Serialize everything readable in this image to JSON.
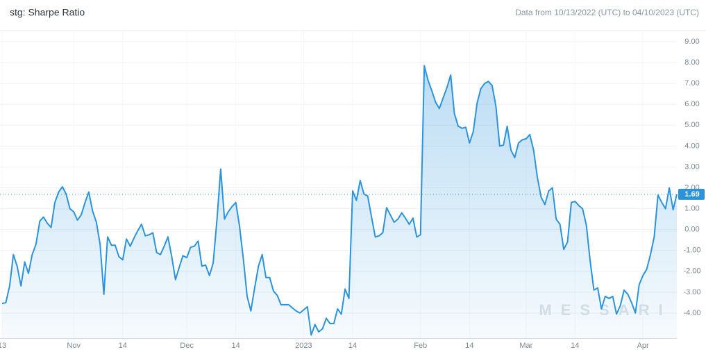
{
  "chart_data": {
    "type": "line",
    "title": "stg: Sharpe Ratio",
    "subtitle": "Data from 10/13/2022 (UTC) to 04/10/2023 (UTC)",
    "watermark": "MESSARI",
    "grid": true,
    "xlim": [
      "2022-10-13",
      "2023-04-10"
    ],
    "ylim": [
      -5.2,
      9.5
    ],
    "xticks": [
      {
        "value": "2022-10-13",
        "label": "13"
      },
      {
        "value": "2022-11-01",
        "label": "Nov"
      },
      {
        "value": "2022-11-14",
        "label": "14"
      },
      {
        "value": "2022-12-01",
        "label": "Dec"
      },
      {
        "value": "2022-12-14",
        "label": "14"
      },
      {
        "value": "2023-01-01",
        "label": "2023"
      },
      {
        "value": "2023-01-14",
        "label": "14"
      },
      {
        "value": "2023-02-01",
        "label": "Feb"
      },
      {
        "value": "2023-02-14",
        "label": "14"
      },
      {
        "value": "2023-03-01",
        "label": "Mar"
      },
      {
        "value": "2023-03-14",
        "label": "14"
      },
      {
        "value": "2023-04-01",
        "label": "Apr"
      }
    ],
    "yticks": [
      {
        "value": 9,
        "label": "9.00"
      },
      {
        "value": 8,
        "label": "8.00"
      },
      {
        "value": 7,
        "label": "7.00"
      },
      {
        "value": 6,
        "label": "6.00"
      },
      {
        "value": 5,
        "label": "5.00"
      },
      {
        "value": 4,
        "label": "4.00"
      },
      {
        "value": 3,
        "label": "3.00"
      },
      {
        "value": 2,
        "label": "2.00"
      },
      {
        "value": 1,
        "label": "1.00"
      },
      {
        "value": 0,
        "label": "0.00"
      },
      {
        "value": -1,
        "label": "-1.00"
      },
      {
        "value": -2,
        "label": "-2.00"
      },
      {
        "value": -3,
        "label": "-3.00"
      },
      {
        "value": -4,
        "label": "-4.00"
      }
    ],
    "x": [
      "2022-10-13",
      "2022-10-14",
      "2022-10-15",
      "2022-10-16",
      "2022-10-17",
      "2022-10-18",
      "2022-10-19",
      "2022-10-20",
      "2022-10-21",
      "2022-10-22",
      "2022-10-23",
      "2022-10-24",
      "2022-10-25",
      "2022-10-26",
      "2022-10-27",
      "2022-10-28",
      "2022-10-29",
      "2022-10-30",
      "2022-10-31",
      "2022-11-01",
      "2022-11-02",
      "2022-11-03",
      "2022-11-04",
      "2022-11-05",
      "2022-11-06",
      "2022-11-07",
      "2022-11-08",
      "2022-11-09",
      "2022-11-10",
      "2022-11-11",
      "2022-11-12",
      "2022-11-13",
      "2022-11-14",
      "2022-11-15",
      "2022-11-16",
      "2022-11-17",
      "2022-11-18",
      "2022-11-19",
      "2022-11-20",
      "2022-11-21",
      "2022-11-22",
      "2022-11-23",
      "2022-11-24",
      "2022-11-25",
      "2022-11-26",
      "2022-11-27",
      "2022-11-28",
      "2022-11-29",
      "2022-11-30",
      "2022-12-01",
      "2022-12-02",
      "2022-12-03",
      "2022-12-04",
      "2022-12-05",
      "2022-12-06",
      "2022-12-07",
      "2022-12-08",
      "2022-12-09",
      "2022-12-10",
      "2022-12-11",
      "2022-12-12",
      "2022-12-13",
      "2022-12-14",
      "2022-12-15",
      "2022-12-16",
      "2022-12-17",
      "2022-12-18",
      "2022-12-19",
      "2022-12-20",
      "2022-12-21",
      "2022-12-22",
      "2022-12-23",
      "2022-12-24",
      "2022-12-25",
      "2022-12-26",
      "2022-12-27",
      "2022-12-28",
      "2022-12-29",
      "2022-12-30",
      "2022-12-31",
      "2023-01-01",
      "2023-01-02",
      "2023-01-03",
      "2023-01-04",
      "2023-01-05",
      "2023-01-06",
      "2023-01-07",
      "2023-01-08",
      "2023-01-09",
      "2023-01-10",
      "2023-01-11",
      "2023-01-12",
      "2023-01-13",
      "2023-01-14",
      "2023-01-15",
      "2023-01-16",
      "2023-01-17",
      "2023-01-18",
      "2023-01-19",
      "2023-01-20",
      "2023-01-21",
      "2023-01-22",
      "2023-01-23",
      "2023-01-24",
      "2023-01-25",
      "2023-01-26",
      "2023-01-27",
      "2023-01-28",
      "2023-01-29",
      "2023-01-30",
      "2023-01-31",
      "2023-02-01",
      "2023-02-02",
      "2023-02-03",
      "2023-02-04",
      "2023-02-05",
      "2023-02-06",
      "2023-02-07",
      "2023-02-08",
      "2023-02-09",
      "2023-02-10",
      "2023-02-11",
      "2023-02-12",
      "2023-02-13",
      "2023-02-14",
      "2023-02-15",
      "2023-02-16",
      "2023-02-17",
      "2023-02-18",
      "2023-02-19",
      "2023-02-20",
      "2023-02-21",
      "2023-02-22",
      "2023-02-23",
      "2023-02-24",
      "2023-02-25",
      "2023-02-26",
      "2023-02-27",
      "2023-02-28",
      "2023-03-01",
      "2023-03-02",
      "2023-03-03",
      "2023-03-04",
      "2023-03-05",
      "2023-03-06",
      "2023-03-07",
      "2023-03-08",
      "2023-03-09",
      "2023-03-10",
      "2023-03-11",
      "2023-03-12",
      "2023-03-13",
      "2023-03-14",
      "2023-03-15",
      "2023-03-16",
      "2023-03-17",
      "2023-03-18",
      "2023-03-19",
      "2023-03-20",
      "2023-03-21",
      "2023-03-22",
      "2023-03-23",
      "2023-03-24",
      "2023-03-25",
      "2023-03-26",
      "2023-03-27",
      "2023-03-28",
      "2023-03-29",
      "2023-03-30",
      "2023-03-31",
      "2023-04-01",
      "2023-04-02",
      "2023-04-03",
      "2023-04-04",
      "2023-04-05",
      "2023-04-06",
      "2023-04-07",
      "2023-04-08",
      "2023-04-09",
      "2023-04-10"
    ],
    "series": [
      {
        "name": "stg",
        "color": "#2b93db",
        "values": [
          -3.54,
          -3.5,
          -2.7,
          -1.2,
          -1.75,
          -2.7,
          -1.55,
          -2.1,
          -1.2,
          -0.7,
          0.4,
          0.6,
          0.3,
          0.1,
          1.3,
          1.8,
          2.05,
          1.7,
          1.0,
          0.85,
          0.45,
          0.7,
          1.3,
          1.8,
          0.9,
          0.35,
          -0.7,
          -3.1,
          -0.35,
          -0.75,
          -0.75,
          -1.3,
          -1.45,
          -0.45,
          -0.8,
          -0.4,
          -0.05,
          0.25,
          -0.3,
          -0.25,
          -0.15,
          -1.1,
          -1.2,
          -0.8,
          -0.35,
          -1.3,
          -2.4,
          -1.8,
          -1.25,
          -1.35,
          -0.85,
          -0.8,
          -0.55,
          -1.75,
          -1.7,
          -2.2,
          -1.6,
          0.45,
          2.9,
          0.5,
          0.85,
          1.1,
          1.3,
          0.15,
          -1.4,
          -3.2,
          -3.9,
          -2.8,
          -1.75,
          -1.2,
          -2.3,
          -2.3,
          -2.95,
          -3.15,
          -3.6,
          -3.6,
          -3.6,
          -3.75,
          -3.9,
          -4.0,
          -3.85,
          -3.7,
          -5.05,
          -4.55,
          -4.9,
          -4.75,
          -4.25,
          -4.5,
          -4.5,
          -3.8,
          -4.05,
          -2.85,
          -3.3,
          1.85,
          1.4,
          2.35,
          1.7,
          1.6,
          0.6,
          -0.35,
          -0.3,
          -0.15,
          1.05,
          0.7,
          0.35,
          0.5,
          0.8,
          0.55,
          0.25,
          0.55,
          -0.35,
          -0.25,
          7.85,
          7.15,
          6.65,
          6.1,
          5.8,
          6.3,
          6.8,
          7.4,
          5.55,
          4.95,
          4.85,
          4.9,
          4.15,
          4.7,
          6.05,
          6.75,
          7.0,
          7.1,
          6.9,
          5.9,
          4.0,
          4.05,
          4.95,
          3.8,
          3.45,
          4.15,
          4.3,
          4.35,
          4.55,
          3.8,
          2.5,
          1.55,
          1.2,
          1.85,
          2.0,
          0.5,
          0.25,
          -0.95,
          -0.6,
          1.3,
          1.35,
          1.15,
          1.0,
          0.2,
          -1.5,
          -2.9,
          -2.8,
          -3.8,
          -3.2,
          -3.3,
          -3.2,
          -4.05,
          -3.65,
          -2.9,
          -3.1,
          -3.5,
          -4.0,
          -2.65,
          -2.2,
          -1.9,
          -1.2,
          -0.35,
          1.65,
          1.3,
          1.0,
          2.0,
          0.95,
          1.69
        ]
      }
    ]
  }
}
